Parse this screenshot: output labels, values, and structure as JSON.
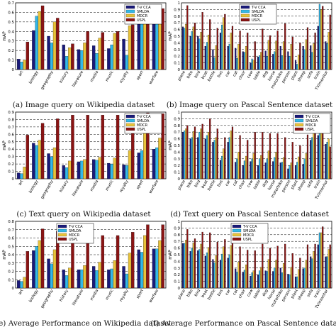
{
  "figure": {
    "captions": [
      "(a) Image query on Wikipedia dataset",
      "(b) Image query on Pascal Sentence dataset",
      "(c) Text query on Wikipedia dataset",
      "(d) Text query on Pascal Sentence dataset",
      "(e) Average Performance on Wikipedia dataset",
      "(f) Average Performance on Pascal Sentence dataset"
    ]
  },
  "colors": {
    "series": [
      "#1a1a7a",
      "#33b8e8",
      "#e8c23a",
      "#8a1414"
    ]
  },
  "chart_data": [
    {
      "type": "bar",
      "caption": "(a) Image query on Wikipedia dataset",
      "ylabel": "mAP",
      "ylim": [
        0,
        0.7
      ],
      "yticks": [
        0,
        0.1,
        0.2,
        0.3,
        0.4,
        0.5,
        0.6,
        0.7
      ],
      "legend_position": "top-right",
      "categories": [
        "art",
        "biology",
        "geography",
        "history",
        "literature",
        "media",
        "music",
        "royalty",
        "sport",
        "warfare"
      ],
      "series": [
        {
          "name": "T-V CCA",
          "values": [
            0.11,
            0.41,
            0.35,
            0.26,
            0.21,
            0.25,
            0.22,
            0.32,
            0.57,
            0.55
          ]
        },
        {
          "name": "SMLDA",
          "values": [
            0.08,
            0.56,
            0.28,
            0.14,
            0.2,
            0.17,
            0.26,
            0.15,
            0.48,
            0.52
          ]
        },
        {
          "name": "MDCR",
          "values": [
            0.1,
            0.61,
            0.5,
            0.23,
            0.28,
            0.33,
            0.38,
            0.46,
            0.61,
            0.58
          ]
        },
        {
          "name": "USPL",
          "values": [
            0.29,
            0.67,
            0.54,
            0.27,
            0.4,
            0.39,
            0.4,
            0.47,
            0.63,
            0.64
          ]
        }
      ]
    },
    {
      "type": "bar",
      "caption": "(b) Image query on Pascal Sentence dataset",
      "ylabel": "mAP",
      "ylim": [
        0,
        1
      ],
      "yticks": [
        0,
        0.1,
        0.2,
        0.3,
        0.4,
        0.5,
        0.6,
        0.7,
        0.8,
        0.9,
        1
      ],
      "legend_position": "top-right",
      "categories": [
        "plane",
        "bike",
        "bird",
        "boat",
        "bottle",
        "bus",
        "car",
        "cat",
        "chair",
        "cow",
        "table",
        "dog",
        "horse",
        "motorbike",
        "person",
        "plant",
        "sheep",
        "sofa",
        "train",
        "TV/monitor"
      ],
      "series": [
        {
          "name": "T-V CCA",
          "values": [
            0.64,
            0.5,
            0.5,
            0.35,
            0.3,
            0.55,
            0.35,
            0.32,
            0.27,
            0.1,
            0.19,
            0.28,
            0.23,
            0.35,
            0.27,
            0.14,
            0.35,
            0.36,
            0.65,
            0.42
          ]
        },
        {
          "name": "SMLDA",
          "values": [
            0.62,
            0.57,
            0.46,
            0.41,
            0.18,
            0.67,
            0.38,
            0.17,
            0.26,
            0.16,
            0.21,
            0.2,
            0.27,
            0.21,
            0.2,
            0.08,
            0.3,
            0.26,
            0.98,
            0.39
          ]
        },
        {
          "name": "MDCR",
          "values": [
            0.68,
            0.64,
            0.56,
            0.52,
            0.36,
            0.78,
            0.55,
            0.38,
            0.35,
            0.14,
            0.26,
            0.44,
            0.43,
            0.42,
            0.38,
            0.22,
            0.45,
            0.39,
            0.9,
            0.56
          ]
        },
        {
          "name": "USPL",
          "values": [
            0.96,
            0.7,
            0.86,
            0.75,
            0.62,
            0.83,
            0.65,
            0.58,
            0.55,
            0.42,
            0.61,
            0.51,
            0.58,
            0.69,
            0.49,
            0.4,
            0.63,
            0.55,
            0.95,
            0.82
          ]
        }
      ]
    },
    {
      "type": "bar",
      "caption": "(c) Text query on Wikipedia dataset",
      "ylabel": "mAP",
      "ylim": [
        0,
        0.9
      ],
      "yticks": [
        0,
        0.1,
        0.2,
        0.3,
        0.4,
        0.5,
        0.6,
        0.7,
        0.8,
        0.9
      ],
      "legend_position": "top-right",
      "categories": [
        "art",
        "biology",
        "geography",
        "history",
        "literature",
        "media",
        "music",
        "royalty",
        "sport",
        "warfare"
      ],
      "series": [
        {
          "name": "T-V CCA",
          "values": [
            0.08,
            0.48,
            0.34,
            0.18,
            0.23,
            0.26,
            0.21,
            0.19,
            0.35,
            0.4
          ]
        },
        {
          "name": "SMLDA",
          "values": [
            0.07,
            0.45,
            0.3,
            0.15,
            0.24,
            0.25,
            0.2,
            0.18,
            0.38,
            0.42
          ]
        },
        {
          "name": "MDCR",
          "values": [
            0.16,
            0.52,
            0.42,
            0.24,
            0.26,
            0.29,
            0.28,
            0.38,
            0.64,
            0.55
          ]
        },
        {
          "name": "USPL",
          "values": [
            0.59,
            0.75,
            0.81,
            0.86,
            0.86,
            0.86,
            0.86,
            0.86,
            0.89,
            0.88
          ]
        }
      ]
    },
    {
      "type": "bar",
      "caption": "(d) Text query on Pascal Sentence dataset",
      "ylabel": "mAP",
      "ylim": [
        0,
        1
      ],
      "yticks": [
        0,
        0.1,
        0.2,
        0.3,
        0.4,
        0.5,
        0.6,
        0.7,
        0.8,
        0.9,
        1
      ],
      "legend_position": "top-right",
      "categories": [
        "plane",
        "bike",
        "bird",
        "boat",
        "bottle",
        "bus",
        "car",
        "cat",
        "chair",
        "cow",
        "table",
        "dog",
        "horse",
        "motorbike",
        "person",
        "plant",
        "sheep",
        "sofa",
        "train",
        "TV/monitor"
      ],
      "series": [
        {
          "name": "T-V CCA",
          "values": [
            0.7,
            0.6,
            0.62,
            0.6,
            0.55,
            0.28,
            0.55,
            0.25,
            0.2,
            0.26,
            0.2,
            0.24,
            0.26,
            0.24,
            0.15,
            0.2,
            0.22,
            0.58,
            0.65,
            0.52
          ]
        },
        {
          "name": "SMLDA",
          "values": [
            0.72,
            0.62,
            0.7,
            0.65,
            0.58,
            0.34,
            0.62,
            0.3,
            0.27,
            0.3,
            0.3,
            0.3,
            0.32,
            0.25,
            0.2,
            0.25,
            0.3,
            0.62,
            0.68,
            0.55
          ]
        },
        {
          "name": "MDCR",
          "values": [
            0.75,
            0.71,
            0.75,
            0.7,
            0.62,
            0.45,
            0.72,
            0.4,
            0.34,
            0.38,
            0.35,
            0.42,
            0.4,
            0.32,
            0.24,
            0.33,
            0.38,
            0.7,
            0.75,
            0.6
          ]
        },
        {
          "name": "USPL",
          "values": [
            0.8,
            0.78,
            0.82,
            0.9,
            0.75,
            0.62,
            0.78,
            0.65,
            0.58,
            0.7,
            0.7,
            0.68,
            0.68,
            0.62,
            0.55,
            0.5,
            0.66,
            0.76,
            0.82,
            0.48
          ]
        }
      ]
    },
    {
      "type": "bar",
      "caption": "(e) Average Performance on Wikipedia dataset",
      "ylabel": "mAP",
      "ylim": [
        0,
        0.8
      ],
      "yticks": [
        0,
        0.1,
        0.2,
        0.3,
        0.4,
        0.5,
        0.6,
        0.7,
        0.8
      ],
      "legend_position": "top-center",
      "categories": [
        "art",
        "biology",
        "geography",
        "history",
        "literature",
        "media",
        "music",
        "royalty",
        "sport",
        "warfare"
      ],
      "series": [
        {
          "name": "T-V CCA",
          "values": [
            0.09,
            0.45,
            0.35,
            0.22,
            0.22,
            0.26,
            0.22,
            0.26,
            0.46,
            0.47
          ]
        },
        {
          "name": "SMLDA",
          "values": [
            0.08,
            0.5,
            0.29,
            0.15,
            0.22,
            0.21,
            0.23,
            0.17,
            0.43,
            0.47
          ]
        },
        {
          "name": "MDCR",
          "values": [
            0.13,
            0.57,
            0.46,
            0.24,
            0.27,
            0.31,
            0.33,
            0.42,
            0.63,
            0.57
          ]
        },
        {
          "name": "USPL",
          "values": [
            0.44,
            0.71,
            0.68,
            0.57,
            0.63,
            0.63,
            0.63,
            0.67,
            0.76,
            0.76
          ]
        }
      ]
    },
    {
      "type": "bar",
      "caption": "(f) Average Performance on Pascal Sentence dataset",
      "ylabel": "mAP",
      "ylim": [
        0,
        1
      ],
      "yticks": [
        0,
        0.1,
        0.2,
        0.3,
        0.4,
        0.5,
        0.6,
        0.7,
        0.8,
        0.9,
        1
      ],
      "legend_position": "top-right",
      "categories": [
        "plane",
        "bike",
        "bird",
        "boat",
        "bottle",
        "bus",
        "car",
        "cat",
        "chair",
        "cow",
        "table",
        "dog",
        "horse",
        "motorbike",
        "person",
        "plant",
        "sheep",
        "sofa",
        "train",
        "TV/monitor"
      ],
      "series": [
        {
          "name": "T-V CCA",
          "values": [
            0.67,
            0.55,
            0.56,
            0.48,
            0.43,
            0.42,
            0.45,
            0.29,
            0.24,
            0.18,
            0.2,
            0.26,
            0.25,
            0.3,
            0.21,
            0.17,
            0.29,
            0.47,
            0.65,
            0.47
          ]
        },
        {
          "name": "SMLDA",
          "values": [
            0.67,
            0.6,
            0.58,
            0.53,
            0.38,
            0.51,
            0.5,
            0.24,
            0.27,
            0.23,
            0.26,
            0.25,
            0.3,
            0.23,
            0.2,
            0.17,
            0.3,
            0.44,
            0.83,
            0.47
          ]
        },
        {
          "name": "MDCR",
          "values": [
            0.72,
            0.68,
            0.66,
            0.61,
            0.49,
            0.62,
            0.64,
            0.39,
            0.35,
            0.26,
            0.31,
            0.43,
            0.42,
            0.37,
            0.31,
            0.28,
            0.42,
            0.55,
            0.83,
            0.58
          ]
        },
        {
          "name": "USPL",
          "values": [
            0.88,
            0.74,
            0.84,
            0.83,
            0.69,
            0.73,
            0.72,
            0.62,
            0.57,
            0.56,
            0.66,
            0.6,
            0.63,
            0.66,
            0.52,
            0.45,
            0.65,
            0.66,
            0.92,
            0.65
          ]
        }
      ]
    }
  ]
}
